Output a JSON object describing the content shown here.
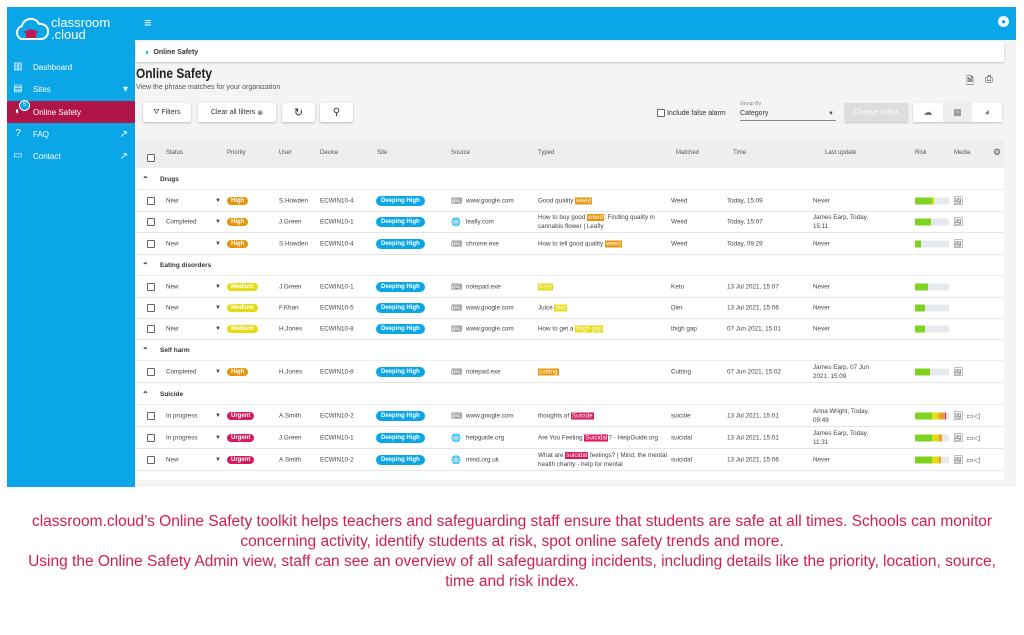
{
  "brand": {
    "logo_text_1": "classroom",
    "logo_text_2": ".cloud",
    "color": "#0aa6e8",
    "accent": "#b0154a"
  },
  "sidebar": {
    "items": [
      {
        "label": "Dashboard",
        "icon": "chart-icon"
      },
      {
        "label": "Sites",
        "icon": "building-icon"
      },
      {
        "label": "Online Safety",
        "icon": "shield-icon",
        "badge": "5",
        "active": true
      },
      {
        "label": "FAQ",
        "icon": "help-icon"
      },
      {
        "label": "Contact",
        "icon": "contact-card-icon"
      }
    ]
  },
  "breadcrumb": "Online Safety",
  "page": {
    "title": "Online Safety",
    "subtitle": "View the phrase matches for your organization"
  },
  "toolbar": {
    "filters": "Filters",
    "clear": "Clear all filters",
    "include_false_alarm": "Include false alarm",
    "group_by_label": "Group By",
    "group_by_value": "Category",
    "change_status": "Change status"
  },
  "columns": [
    "Status",
    "Priority",
    "User",
    "Device",
    "Site",
    "Source",
    "Typed",
    "Matched",
    "Time",
    "Last update",
    "Risk",
    "Media"
  ],
  "priority_colors": {
    "High": "#e8950c",
    "Medium": "#e4dc12",
    "Urgent": "#d81b60"
  },
  "groups": [
    {
      "name": "Drugs",
      "rows": [
        {
          "status": "New",
          "priority": "High",
          "user": "S.Howden",
          "device": "ECWIN10-4",
          "site": "Deeping High",
          "source": "www.google.com",
          "source_icon": "keyboard-icon",
          "typed_pre": "Good quality ",
          "typed_hl": "weed",
          "typed_post": "",
          "matched": "Weed",
          "time": "Today, 15:09",
          "last_update": "Never",
          "risk": 55,
          "media": [
            "image-icon"
          ]
        },
        {
          "status": "Completed",
          "priority": "High",
          "user": "J.Green",
          "device": "ECWIN10-1",
          "site": "Deeping High",
          "source": "leafly.com",
          "source_icon": "globe-icon",
          "typed_pre": "How to buy good ",
          "typed_hl": "weed",
          "typed_post": ": Finding quality in cannabis flower | Leafly",
          "matched": "Weed",
          "time": "Today, 15:07",
          "last_update": "James Earp, Today, 15:11",
          "risk": 48,
          "media": [
            "image-icon"
          ]
        },
        {
          "status": "New",
          "priority": "High",
          "user": "S.Howden",
          "device": "ECWIN10-4",
          "site": "Deeping High",
          "source": "chrome.exe",
          "source_icon": "keyboard-icon",
          "typed_pre": "How to tell good quality ",
          "typed_hl": "weed",
          "typed_post": "",
          "matched": "Weed",
          "time": "Today, 09:29",
          "last_update": "Never",
          "risk": 18,
          "media": [
            "image-icon"
          ]
        }
      ]
    },
    {
      "name": "Eating disorders",
      "rows": [
        {
          "status": "New",
          "priority": "Medium",
          "user": "J.Green",
          "device": "ECWIN10-1",
          "site": "Deeping High",
          "source": "notepad.exe",
          "source_icon": "keyboard-icon",
          "typed_pre": "",
          "typed_hl": "Keto",
          "typed_post": "",
          "matched": "Keto",
          "time": "13 Jul 2021, 15:07",
          "last_update": "Never",
          "risk": 38,
          "media": []
        },
        {
          "status": "New",
          "priority": "Medium",
          "user": "F.Khan",
          "device": "ECWIN10-5",
          "site": "Deeping High",
          "source": "www.google.com",
          "source_icon": "keyboard-icon",
          "typed_pre": "Juice ",
          "typed_hl": "diet",
          "typed_post": "",
          "matched": "Diet",
          "time": "13 Jul 2021, 15:06",
          "last_update": "Never",
          "risk": 28,
          "media": []
        },
        {
          "status": "New",
          "priority": "Medium",
          "user": "H.Jones",
          "device": "ECWIN10-8",
          "site": "Deeping High",
          "source": "www.google.com",
          "source_icon": "keyboard-icon",
          "typed_pre": "How to get a ",
          "typed_hl": "thigh gap",
          "typed_post": "",
          "matched": "thigh gap",
          "time": "07 Jun 2021, 15:01",
          "last_update": "Never",
          "risk": 28,
          "media": []
        }
      ]
    },
    {
      "name": "Self harm",
      "rows": [
        {
          "status": "Completed",
          "priority": "High",
          "user": "H.Jones",
          "device": "ECWIN10-8",
          "site": "Deeping High",
          "source": "notepad.exe",
          "source_icon": "keyboard-icon",
          "typed_pre": "",
          "typed_hl": "cutting",
          "typed_post": "",
          "matched": "Cutting",
          "time": "07 Jun 2021, 15:02",
          "last_update": "James Earp, 07 Jun 2021, 15:09",
          "risk": 45,
          "media": [
            "image-icon"
          ]
        }
      ]
    },
    {
      "name": "Suicide",
      "rows": [
        {
          "status": "In progress",
          "priority": "Urgent",
          "user": "A.Smith",
          "device": "ECWIN10-2",
          "site": "Deeping High",
          "source": "www.google.com",
          "source_icon": "keyboard-icon",
          "typed_pre": "thoughts of ",
          "typed_hl": "Suicide",
          "typed_post": "",
          "matched": "suicide",
          "time": "13 Jul 2021, 15:01",
          "last_update": "Anna Wright, Today, 09:49",
          "risk": 92,
          "media": [
            "image-icon",
            "video-icon"
          ]
        },
        {
          "status": "In progress",
          "priority": "Urgent",
          "user": "J.Green",
          "device": "ECWIN10-1",
          "site": "Deeping High",
          "source": "helpguide.org",
          "source_icon": "globe-icon",
          "typed_pre": "Are You Feeling ",
          "typed_hl": "Suicidal",
          "typed_post": "? - HelpGuide.org",
          "matched": "suicidal",
          "time": "13 Jul 2021, 15:01",
          "last_update": "James Earp, Today, 11:31",
          "risk": 78,
          "media": [
            "image-icon",
            "video-icon"
          ]
        },
        {
          "status": "New",
          "priority": "Urgent",
          "user": "A.Smith",
          "device": "ECWIN10-2",
          "site": "Deeping High",
          "source": "mind.org.uk",
          "source_icon": "globe-icon",
          "typed_pre": "What are ",
          "typed_hl": "suicidal",
          "typed_post": " feelings? | Mind, the mental health charity - help for mental",
          "matched": "suicidal",
          "time": "13 Jul 2021, 15:06",
          "last_update": "Never",
          "risk": 76,
          "media": [
            "image-icon",
            "video-icon"
          ]
        }
      ]
    }
  ],
  "caption": {
    "line1": "classroom.cloud’s Online Safety toolkit helps teachers and safeguarding staff ensure that students are safe at all times. Schools can monitor concerning activity, identify students at risk, spot online safety trends and more.",
    "line2": "Using the Online Safety Admin view, staff can see an overview of all safeguarding incidents, including details like the priority, location, source, time and risk index."
  }
}
